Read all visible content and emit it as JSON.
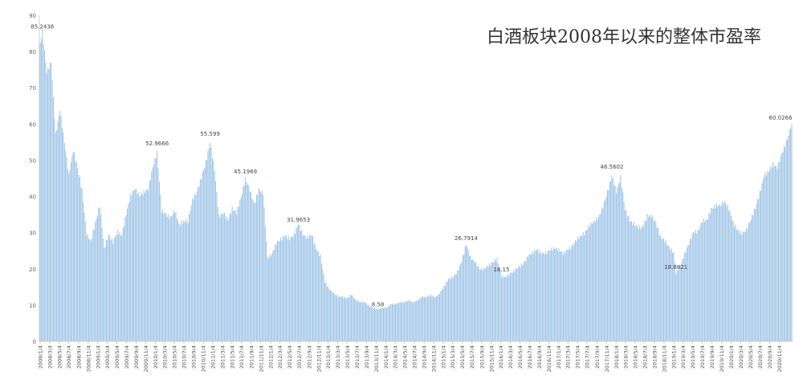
{
  "chart_data": {
    "type": "bar",
    "title": "白酒板块2008年以来的整体市盈率",
    "xlabel": "",
    "ylabel": "",
    "ylim": [
      0,
      90
    ],
    "yticks": [
      0,
      10,
      20,
      30,
      40,
      50,
      60,
      70,
      80,
      90
    ],
    "grid": false,
    "legend": "none",
    "bar_color": "#9DC3E6",
    "xtick_labels": [
      "2008/1/4",
      "2008/3/4",
      "2008/5/4",
      "2008/7/4",
      "2008/9/4",
      "2008/11/4",
      "2009/1/4",
      "2009/3/4",
      "2009/5/4",
      "2009/7/4",
      "2009/9/4",
      "2009/11/4",
      "2010/1/4",
      "2010/3/4",
      "2010/5/4",
      "2010/7/4",
      "2010/9/4",
      "2010/11/4",
      "2011/1/4",
      "2011/3/4",
      "2011/5/4",
      "2011/7/4",
      "2011/9/4",
      "2011/11/4",
      "2012/1/4",
      "2012/3/4",
      "2012/5/4",
      "2012/7/4",
      "2012/9/4",
      "2012/11/4",
      "2013/1/4",
      "2013/3/4",
      "2013/5/4",
      "2013/7/4",
      "2013/9/4",
      "2013/11/4",
      "2014/1/4",
      "2014/3/4",
      "2014/5/4",
      "2014/7/4",
      "2014/9/4",
      "2014/11/4",
      "2015/1/4",
      "2015/3/4",
      "2015/5/4",
      "2015/7/4",
      "2015/9/4",
      "2015/11/4",
      "2016/1/4",
      "2016/3/4",
      "2016/5/4",
      "2016/7/4",
      "2016/9/4",
      "2016/11/4",
      "2017/1/4",
      "2017/3/4",
      "2017/5/4",
      "2017/7/4",
      "2017/9/4",
      "2017/11/4",
      "2018/1/4",
      "2018/3/4",
      "2018/5/4",
      "2018/7/4",
      "2018/9/4",
      "2018/11/4",
      "2019/1/4",
      "2019/3/4",
      "2019/5/4",
      "2019/7/4",
      "2019/9/4",
      "2019/11/4",
      "2020/1/4",
      "2020/3/4",
      "2020/5/4",
      "2020/7/4",
      "2020/9/4",
      "2020/11/4"
    ],
    "keypoints": [
      [
        "2008/1/4",
        82
      ],
      [
        "2008/1/18",
        85.2436
      ],
      [
        "2008/2/15",
        74
      ],
      [
        "2008/3/14",
        77
      ],
      [
        "2008/4/11",
        57
      ],
      [
        "2008/5/9",
        64
      ],
      [
        "2008/6/6",
        55
      ],
      [
        "2008/7/4",
        46
      ],
      [
        "2008/8/1",
        53
      ],
      [
        "2008/8/29",
        48
      ],
      [
        "2008/9/26",
        42
      ],
      [
        "2008/10/24",
        30
      ],
      [
        "2008/11/21",
        28
      ],
      [
        "2008/12/19",
        33
      ],
      [
        "2009/1/16",
        38
      ],
      [
        "2009/2/13",
        26
      ],
      [
        "2009/3/13",
        30
      ],
      [
        "2009/4/10",
        28
      ],
      [
        "2009/5/8",
        31
      ],
      [
        "2009/6/5",
        30
      ],
      [
        "2009/7/3",
        36
      ],
      [
        "2009/7/31",
        41
      ],
      [
        "2009/8/28",
        43
      ],
      [
        "2009/9/25",
        41
      ],
      [
        "2009/10/23",
        42
      ],
      [
        "2009/11/20",
        43
      ],
      [
        "2009/12/18",
        49
      ],
      [
        "2010/1/15",
        52.9666
      ],
      [
        "2010/2/12",
        37
      ],
      [
        "2010/3/12",
        36
      ],
      [
        "2010/4/9",
        35
      ],
      [
        "2010/5/7",
        37
      ],
      [
        "2010/6/4",
        33
      ],
      [
        "2010/7/2",
        34
      ],
      [
        "2010/7/30",
        34
      ],
      [
        "2010/8/27",
        40
      ],
      [
        "2010/9/24",
        42
      ],
      [
        "2010/10/22",
        46
      ],
      [
        "2010/11/19",
        50
      ],
      [
        "2010/12/17",
        55.599
      ],
      [
        "2011/1/14",
        48
      ],
      [
        "2011/2/11",
        35
      ],
      [
        "2011/3/11",
        36
      ],
      [
        "2011/4/8",
        34
      ],
      [
        "2011/5/6",
        37
      ],
      [
        "2011/6/3",
        36
      ],
      [
        "2011/7/1",
        40
      ],
      [
        "2011/7/29",
        45.1969
      ],
      [
        "2011/8/26",
        42
      ],
      [
        "2011/9/23",
        38
      ],
      [
        "2011/10/21",
        42
      ],
      [
        "2011/11/18",
        41
      ],
      [
        "2011/12/16",
        23
      ],
      [
        "2012/1/13",
        24
      ],
      [
        "2012/2/10",
        27
      ],
      [
        "2012/3/9",
        28
      ],
      [
        "2012/4/6",
        29
      ],
      [
        "2012/5/4",
        28
      ],
      [
        "2012/6/1",
        29
      ],
      [
        "2012/6/29",
        31.9653
      ],
      [
        "2012/7/27",
        29
      ],
      [
        "2012/8/24",
        28
      ],
      [
        "2012/9/21",
        29
      ],
      [
        "2012/10/19",
        25
      ],
      [
        "2012/11/16",
        23
      ],
      [
        "2012/12/14",
        16
      ],
      [
        "2013/1/11",
        14
      ],
      [
        "2013/2/8",
        13
      ],
      [
        "2013/3/8",
        12
      ],
      [
        "2013/4/5",
        12
      ],
      [
        "2013/5/3",
        11.5
      ],
      [
        "2013/5/31",
        12.5
      ],
      [
        "2013/6/28",
        11
      ],
      [
        "2013/7/26",
        10.5
      ],
      [
        "2013/8/23",
        10.5
      ],
      [
        "2013/9/20",
        9.5
      ],
      [
        "2013/10/18",
        9
      ],
      [
        "2013/11/15",
        8.58
      ],
      [
        "2013/12/13",
        9
      ],
      [
        "2014/1/10",
        9
      ],
      [
        "2014/2/7",
        10
      ],
      [
        "2014/3/7",
        10
      ],
      [
        "2014/4/4",
        10.5
      ],
      [
        "2014/5/2",
        10.5
      ],
      [
        "2014/5/30",
        11
      ],
      [
        "2014/6/27",
        10.5
      ],
      [
        "2014/7/25",
        11
      ],
      [
        "2014/8/22",
        12
      ],
      [
        "2014/9/19",
        12
      ],
      [
        "2014/10/17",
        12.5
      ],
      [
        "2014/11/14",
        12
      ],
      [
        "2014/12/12",
        13
      ],
      [
        "2015/1/9",
        15
      ],
      [
        "2015/2/6",
        17
      ],
      [
        "2015/3/6",
        17.5
      ],
      [
        "2015/4/3",
        19
      ],
      [
        "2015/5/1",
        22
      ],
      [
        "2015/5/29",
        26.7914
      ],
      [
        "2015/6/26",
        23
      ],
      [
        "2015/7/24",
        22
      ],
      [
        "2015/8/21",
        20
      ],
      [
        "2015/9/18",
        20
      ],
      [
        "2015/10/16",
        21
      ],
      [
        "2015/11/13",
        22
      ],
      [
        "2015/12/11",
        23
      ],
      [
        "2016/1/8",
        18.15
      ],
      [
        "2016/2/5",
        18
      ],
      [
        "2016/3/4",
        19
      ],
      [
        "2016/4/1",
        20
      ],
      [
        "2016/4/29",
        21
      ],
      [
        "2016/5/27",
        22
      ],
      [
        "2016/6/24",
        24
      ],
      [
        "2016/7/22",
        25
      ],
      [
        "2016/8/19",
        26
      ],
      [
        "2016/9/16",
        25
      ],
      [
        "2016/10/14",
        25
      ],
      [
        "2016/11/11",
        26
      ],
      [
        "2016/12/9",
        26.5
      ],
      [
        "2017/1/6",
        26
      ],
      [
        "2017/2/3",
        25
      ],
      [
        "2017/3/3",
        26
      ],
      [
        "2017/3/31",
        27
      ],
      [
        "2017/4/28",
        29
      ],
      [
        "2017/5/26",
        30
      ],
      [
        "2017/6/23",
        31
      ],
      [
        "2017/7/21",
        33
      ],
      [
        "2017/8/18",
        34
      ],
      [
        "2017/9/15",
        35
      ],
      [
        "2017/10/13",
        38
      ],
      [
        "2017/11/10",
        42
      ],
      [
        "2017/12/8",
        46.5602
      ],
      [
        "2018/1/5",
        42
      ],
      [
        "2018/2/2",
        46
      ],
      [
        "2018/3/2",
        37
      ],
      [
        "2018/3/30",
        34
      ],
      [
        "2018/4/27",
        33
      ],
      [
        "2018/5/25",
        32
      ],
      [
        "2018/6/22",
        32
      ],
      [
        "2018/7/20",
        35
      ],
      [
        "2018/8/17",
        35
      ],
      [
        "2018/9/14",
        33
      ],
      [
        "2018/10/12",
        29
      ],
      [
        "2018/11/9",
        28
      ],
      [
        "2018/12/7",
        26
      ],
      [
        "2019/1/4",
        24.5
      ],
      [
        "2019/1/18",
        18.8821
      ],
      [
        "2019/2/15",
        21
      ],
      [
        "2019/3/15",
        24
      ],
      [
        "2019/4/12",
        27
      ],
      [
        "2019/5/10",
        30
      ],
      [
        "2019/6/7",
        30
      ],
      [
        "2019/7/5",
        33
      ],
      [
        "2019/8/2",
        33
      ],
      [
        "2019/8/30",
        36
      ],
      [
        "2019/9/27",
        37
      ],
      [
        "2019/10/25",
        37
      ],
      [
        "2019/11/22",
        38
      ],
      [
        "2019/12/20",
        36
      ],
      [
        "2020/1/17",
        32
      ],
      [
        "2020/2/14",
        30
      ],
      [
        "2020/3/13",
        29
      ],
      [
        "2020/4/10",
        30
      ],
      [
        "2020/5/8",
        33
      ],
      [
        "2020/6/5",
        36
      ],
      [
        "2020/7/3",
        40
      ],
      [
        "2020/7/31",
        45
      ],
      [
        "2020/8/28",
        46
      ],
      [
        "2020/9/25",
        48
      ],
      [
        "2020/10/23",
        47
      ],
      [
        "2020/11/20",
        51
      ],
      [
        "2020/12/18",
        54
      ],
      [
        "2021/1/8",
        57
      ],
      [
        "2021/1/22",
        60.0266
      ]
    ],
    "annotations": [
      {
        "date": "2008/1/18",
        "text": "85.2436"
      },
      {
        "date": "2010/1/15",
        "text": "52.9666"
      },
      {
        "date": "2010/12/17",
        "text": "55.599"
      },
      {
        "date": "2011/7/29",
        "text": "45.1969"
      },
      {
        "date": "2012/6/29",
        "text": "31.9653"
      },
      {
        "date": "2013/11/15",
        "text": "8.58"
      },
      {
        "date": "2015/5/29",
        "text": "26.7914"
      },
      {
        "date": "2016/1/8",
        "text": "18.15"
      },
      {
        "date": "2017/12/8",
        "text": "46.5602"
      },
      {
        "date": "2019/1/18",
        "text": "18.8821"
      },
      {
        "date": "2021/1/22",
        "text": "60.0266"
      }
    ]
  }
}
